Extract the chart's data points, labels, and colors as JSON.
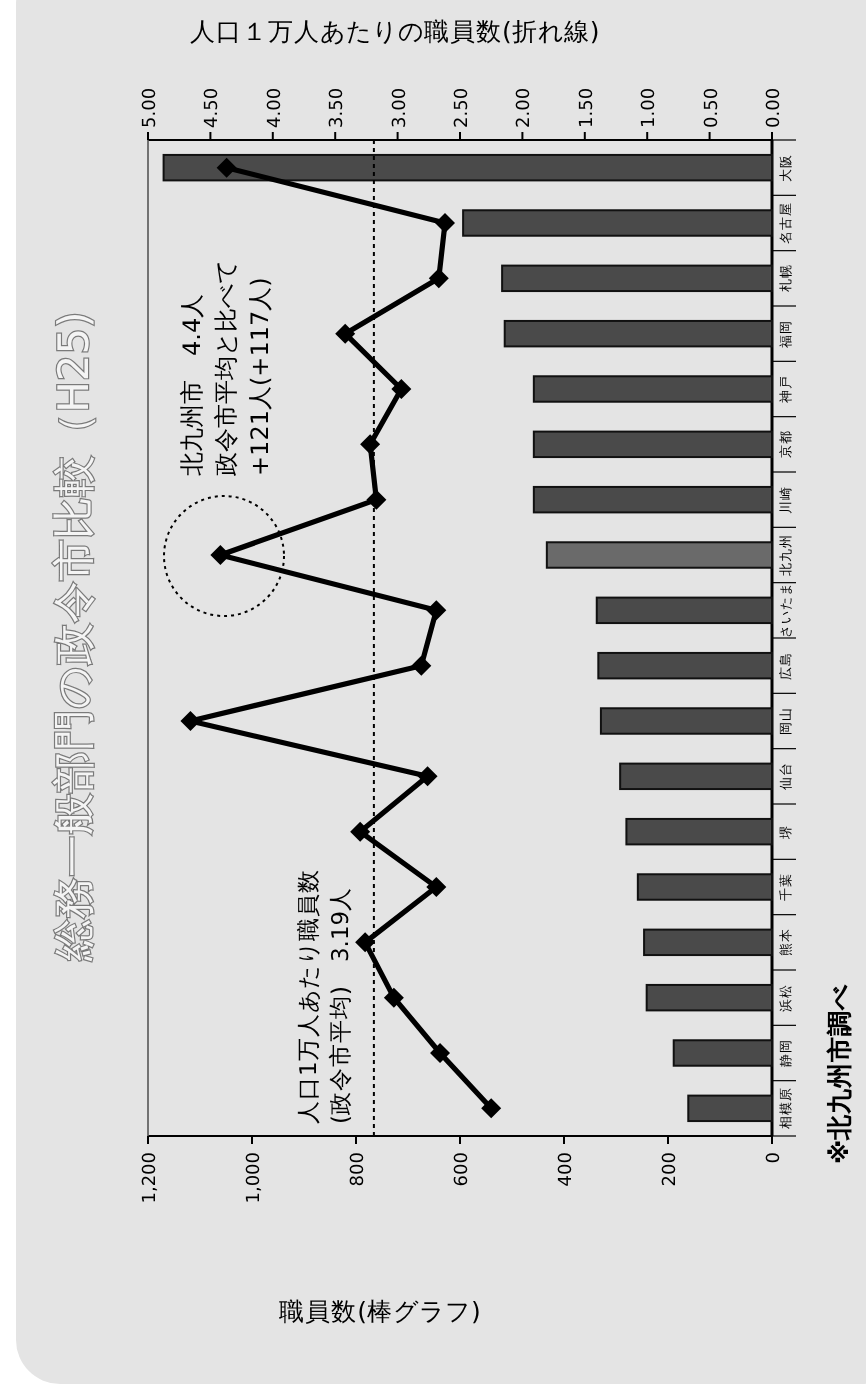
{
  "chart_data": {
    "type": "bar",
    "orientation": "horizontal",
    "title": "総務一般部門の政令市比較（H25)",
    "xlabel": "職員数(棒グラフ)",
    "x2label": "人口１万人あたりの職員数(折れ線)",
    "categories": [
      "大阪",
      "名古屋",
      "札幌",
      "福岡",
      "神戸",
      "京都",
      "川崎",
      "北九州",
      "さいたま",
      "広島",
      "岡山",
      "仙台",
      "堺",
      "千葉",
      "熊本",
      "浜松",
      "静岡",
      "相模原"
    ],
    "series": [
      {
        "values": [
          1170,
          594,
          519,
          514,
          458,
          458,
          458,
          433,
          337,
          334,
          329,
          292,
          280,
          258,
          246,
          241,
          189,
          161
        ],
        "colors": [
          "#4a4a4a",
          "#4a4a4a",
          "#4a4a4a",
          "#4a4a4a",
          "#4a4a4a",
          "#4a4a4a",
          "#4a4a4a",
          "#6a6a6a",
          "#4a4a4a",
          "#4a4a4a",
          "#4a4a4a",
          "#4a4a4a",
          "#4a4a4a",
          "#4a4a4a",
          "#4a4a4a",
          "#4a4a4a",
          "#4a4a4a",
          "#4a4a4a"
        ]
      },
      {
        "type": "line",
        "axis": "x2",
        "color": "#000000",
        "marker": "diamond",
        "values": [
          4.37,
          2.62,
          2.67,
          3.42,
          2.97,
          3.22,
          3.17,
          4.42,
          2.69,
          2.81,
          4.66,
          2.76,
          3.3,
          2.69,
          3.26,
          3.03,
          2.66,
          2.25
        ]
      }
    ],
    "xlim": [
      1200,
      0
    ],
    "xticks": [
      {
        "value": 1200,
        "label": "1,200"
      },
      {
        "value": 1000,
        "label": "1,000"
      },
      800,
      600,
      400,
      200,
      0
    ],
    "x2lim": [
      5,
      0
    ],
    "x2ticks": [
      {
        "value": 5,
        "label": "5.00"
      },
      {
        "value": 4.5,
        "label": "4.50"
      },
      {
        "value": 4,
        "label": "4.00"
      },
      {
        "value": 3.5,
        "label": "3.50"
      },
      {
        "value": 3,
        "label": "3.00"
      },
      {
        "value": 2.5,
        "label": "2.50"
      },
      {
        "value": 2,
        "label": "2.00"
      },
      {
        "value": 1.5,
        "label": "1.50"
      },
      {
        "value": 1,
        "label": "1.00"
      },
      {
        "value": 0.5,
        "label": "0.50"
      },
      {
        "value": 0,
        "label": "0.00"
      }
    ],
    "ref_lines": [
      {
        "axis": "x2",
        "value": 3.19,
        "label": "人口1万人あたり職員数\n(政令市平均)　3.19人",
        "line_style": "dotted",
        "color": "#000000"
      }
    ],
    "annotations": [
      "北九州市　4.4人",
      "政令市平均と比べて",
      "+121人(+117人)",
      "※北九州市調べ"
    ],
    "grid": false
  }
}
